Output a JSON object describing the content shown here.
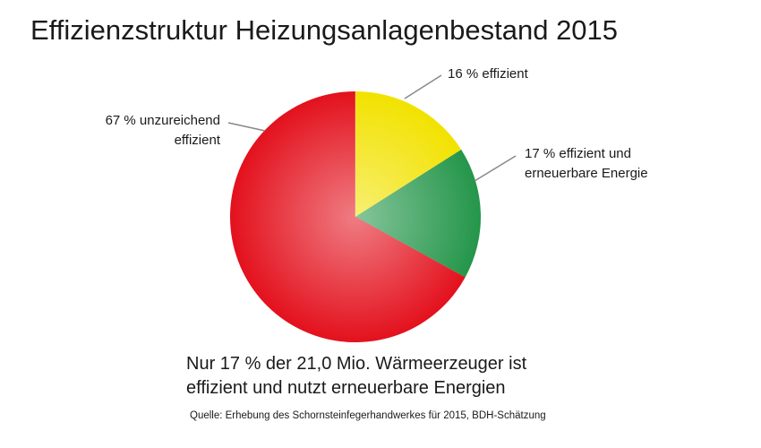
{
  "chart_data": {
    "type": "pie",
    "title": "Effizienzstruktur Heizungsanlagenbestand 2015",
    "values": [
      16,
      17,
      67
    ],
    "value_labels": [
      "16 % effizient",
      "17 % effizient und erneuerbare Energie",
      "67 % unzureichend effizient"
    ],
    "colors": [
      "#f2e200",
      "#24964a",
      "#e3111d"
    ],
    "annotation": "Nur 17 % der 21,0 Mio. Wärmeerzeuger ist effizient und nutzt erneuerbare Energien",
    "source": "Quelle: Erhebung des Schornsteinfegerhandwerkes für 2015, BDH-Schätzung"
  }
}
